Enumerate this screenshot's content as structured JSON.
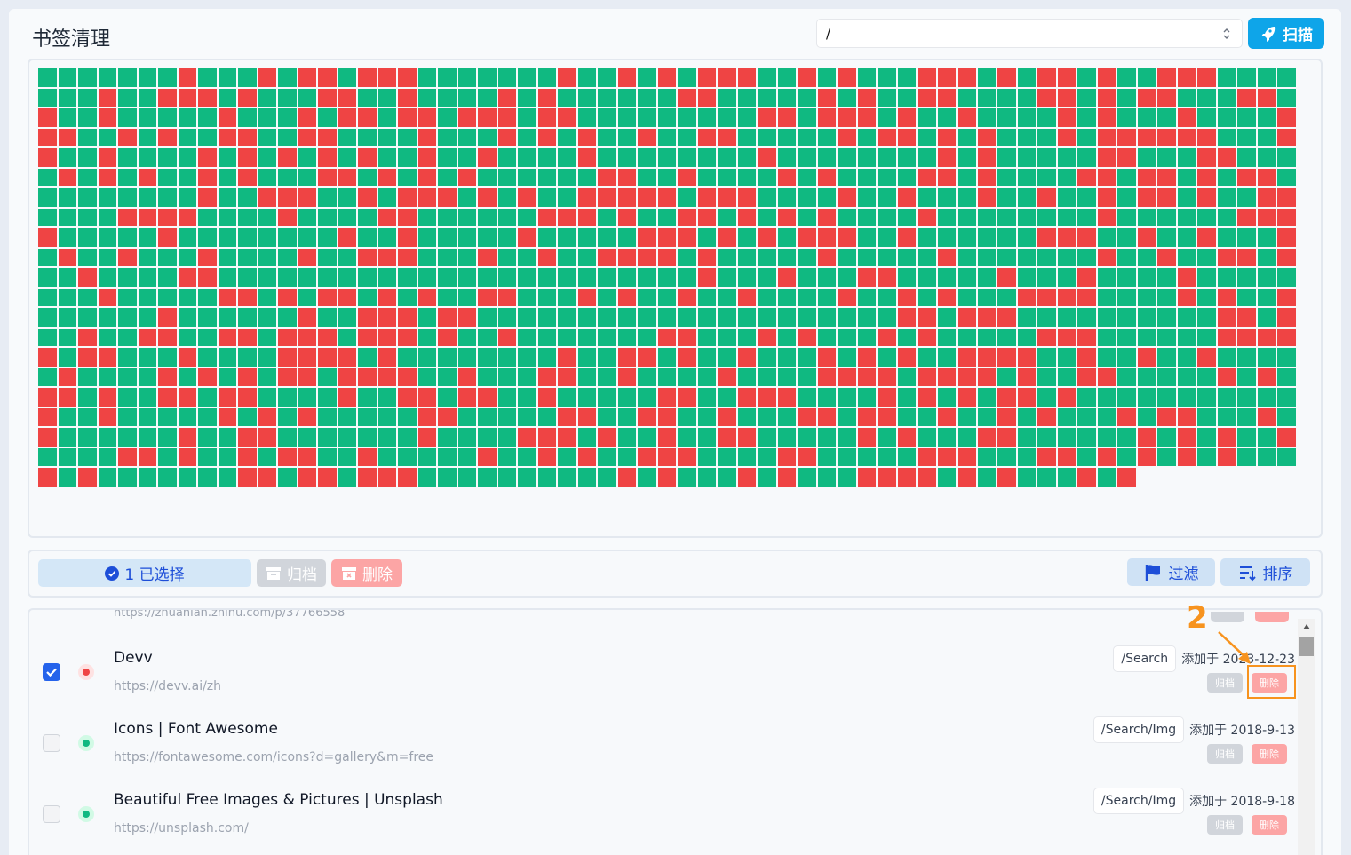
{
  "header": {
    "title": "书签清理",
    "path_value": "/",
    "scan_label": "扫描"
  },
  "grid": {
    "total": 1315,
    "columns": 63,
    "colors": {
      "ok": "#10b981",
      "bad": "#ef4444"
    }
  },
  "toolbar": {
    "selected_label": "1 已选择",
    "archive_label": "归档",
    "delete_label": "删除",
    "filter_label": "过滤",
    "sort_label": "排序"
  },
  "list": {
    "partial_url": "https://zhuanlan.zhihu.com/p/37766558",
    "items": [
      {
        "title": "Devv",
        "url": "https://devv.ai/zh",
        "path": "/Search",
        "added": "添加于 2023-12-23",
        "checked": true,
        "status": "red",
        "archive": "归档",
        "delete": "删除"
      },
      {
        "title": "Icons | Font Awesome",
        "url": "https://fontawesome.com/icons?d=gallery&m=free",
        "path": "/Search/Img",
        "added": "添加于 2018-9-13",
        "checked": false,
        "status": "green",
        "archive": "归档",
        "delete": "删除"
      },
      {
        "title": "Beautiful Free Images & Pictures | Unsplash",
        "url": "https://unsplash.com/",
        "path": "/Search/Img",
        "added": "添加于 2018-9-18",
        "checked": false,
        "status": "green",
        "archive": "归档",
        "delete": "删除"
      }
    ]
  },
  "annotation": {
    "number": "2",
    "color": "#f7931e"
  }
}
